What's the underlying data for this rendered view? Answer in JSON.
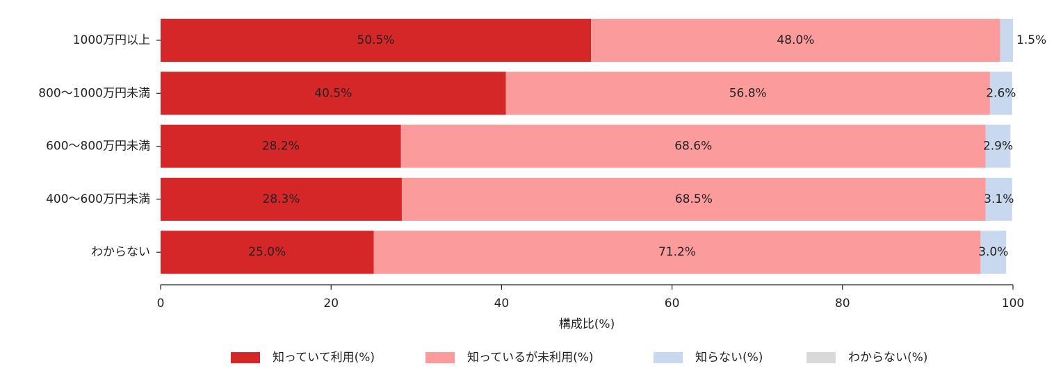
{
  "chart_data": {
    "type": "stacked-barh",
    "categories": [
      "1000万円以上",
      "800～1000万円未満",
      "600～800万円未満",
      "400～600万円未満",
      "わからない"
    ],
    "series": [
      {
        "name": "知っていて利用(%)",
        "color": "#d62728",
        "label_color": "#ffffff",
        "values": [
          50.5,
          40.5,
          28.2,
          28.3,
          25.0
        ],
        "value_labels": [
          "50.5%",
          "40.5%",
          "28.2%",
          "28.3%",
          "25.0%"
        ]
      },
      {
        "name": "知っているが未利用(%)",
        "color": "#fc9b9b",
        "label_color": "#ffffff",
        "values": [
          48.0,
          56.8,
          68.6,
          68.5,
          71.2
        ],
        "value_labels": [
          "48.0%",
          "56.8%",
          "68.6%",
          "68.5%",
          "71.2%"
        ]
      },
      {
        "name": "知らない(%)",
        "color": "#c8d8ee",
        "label_color": "#555555",
        "values": [
          1.5,
          2.6,
          2.9,
          3.1,
          3.0
        ],
        "value_labels": [
          "1.5%",
          "2.6%",
          "2.9%",
          "3.1%",
          "3.0%"
        ]
      },
      {
        "name": "わからない(%)",
        "color": "#d9d9d9",
        "values": [
          0,
          0,
          0,
          0,
          0
        ]
      }
    ],
    "xlabel": "構成比(%)",
    "xlim": [
      0,
      100
    ],
    "xticks": [
      0,
      20,
      40,
      60,
      80,
      100
    ],
    "legend": "bottom"
  }
}
